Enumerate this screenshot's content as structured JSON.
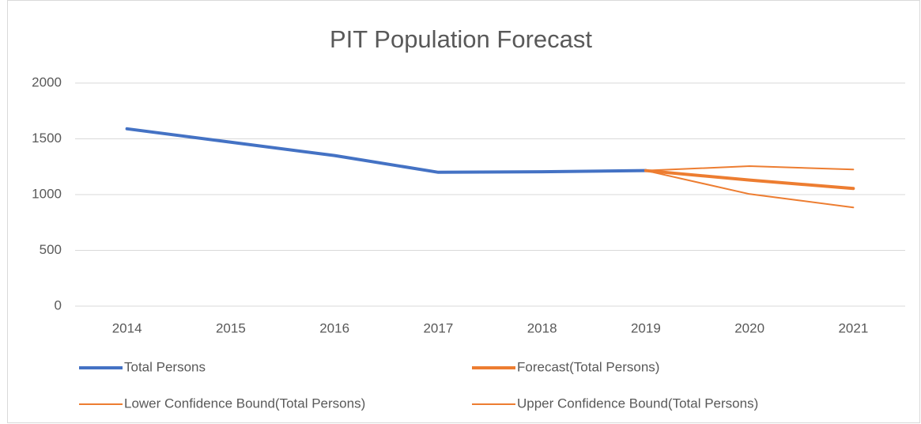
{
  "chart_data": {
    "type": "line",
    "title": "PIT Population Forecast",
    "categories": [
      "2014",
      "2015",
      "2016",
      "2017",
      "2018",
      "2019",
      "2020",
      "2021"
    ],
    "series": [
      {
        "name": "Total Persons",
        "color": "#4472c4",
        "width": 4,
        "values": [
          1590,
          1470,
          1350,
          1200,
          1205,
          1215,
          null,
          null
        ]
      },
      {
        "name": "Forecast(Total Persons)",
        "color": "#ed7d31",
        "width": 4,
        "values": [
          null,
          null,
          null,
          null,
          null,
          1215,
          1130,
          1055
        ]
      },
      {
        "name": "Lower Confidence Bound(Total Persons)",
        "color": "#ed7d31",
        "width": 2,
        "values": [
          null,
          null,
          null,
          null,
          null,
          1215,
          1005,
          885
        ]
      },
      {
        "name": "Upper Confidence Bound(Total Persons)",
        "color": "#ed7d31",
        "width": 2,
        "values": [
          null,
          null,
          null,
          null,
          null,
          1215,
          1255,
          1225
        ]
      }
    ],
    "ylim": [
      0,
      2000
    ],
    "yticks": [
      0,
      500,
      1000,
      1500,
      2000
    ],
    "grid": true,
    "legend": "bottom"
  }
}
